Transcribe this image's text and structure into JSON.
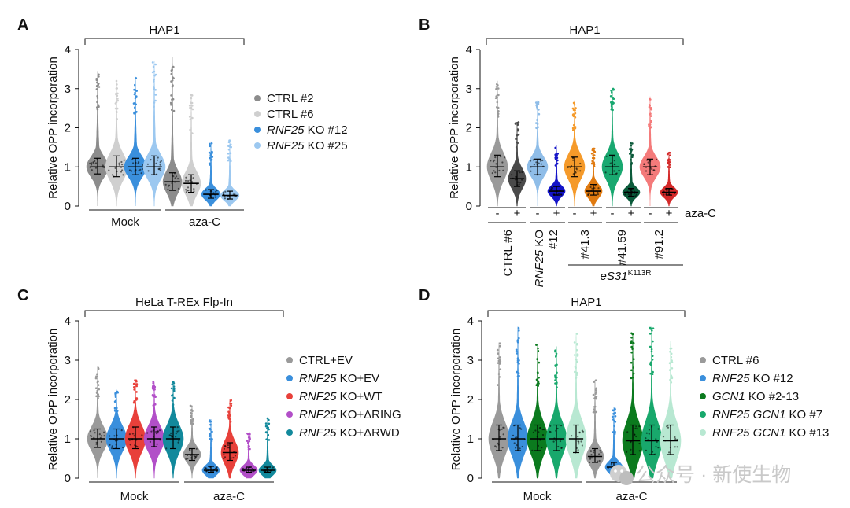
{
  "watermark": "公众号 · 新使生物",
  "watermark_icon": "wechat-icon",
  "chart_data": [
    {
      "panel": "A",
      "type": "violin",
      "title": "HAP1",
      "ylabel": "Relative OPP incorporation",
      "ylim": [
        0,
        4
      ],
      "yticks": [
        "0",
        "1",
        "2",
        "3",
        "4"
      ],
      "groups": [
        "Mock",
        "aza-C"
      ],
      "legend": [
        {
          "label_it": "",
          "label": "CTRL #2",
          "color": "#8c8c8c"
        },
        {
          "label_it": "",
          "label": "CTRL #6",
          "color": "#cfcfcf"
        },
        {
          "label_it": "RNF25",
          "label": " KO #12",
          "color": "#3a8fdc"
        },
        {
          "label_it": "RNF25",
          "label": " KO #25",
          "color": "#9cc8f0"
        }
      ],
      "series": [
        {
          "group": "Mock",
          "name": "CTRL #2",
          "color": "#8c8c8c",
          "median": 1.0,
          "q1": 0.82,
          "q3": 1.22,
          "max": 3.45,
          "extra_max": 3.45
        },
        {
          "group": "Mock",
          "name": "CTRL #6",
          "color": "#cfcfcf",
          "median": 1.0,
          "q1": 0.75,
          "q3": 1.28,
          "max": 3.2,
          "extra_max": 3.2
        },
        {
          "group": "Mock",
          "name": "RNF25 KO #12",
          "color": "#3a8fdc",
          "median": 1.0,
          "q1": 0.8,
          "q3": 1.22,
          "max": 3.3,
          "extra_max": 3.3
        },
        {
          "group": "Mock",
          "name": "RNF25 KO #25",
          "color": "#9cc8f0",
          "median": 1.0,
          "q1": 0.8,
          "q3": 1.28,
          "max": 3.7,
          "extra_max": 3.7
        },
        {
          "group": "aza-C",
          "name": "CTRL #2",
          "color": "#8c8c8c",
          "median": 0.62,
          "q1": 0.4,
          "q3": 0.85,
          "max": 3.8,
          "extra_max": 3.8
        },
        {
          "group": "aza-C",
          "name": "CTRL #6",
          "color": "#cfcfcf",
          "median": 0.58,
          "q1": 0.35,
          "q3": 0.8,
          "max": 2.85,
          "extra_max": 2.85
        },
        {
          "group": "aza-C",
          "name": "RNF25 KO #12",
          "color": "#3a8fdc",
          "median": 0.3,
          "q1": 0.2,
          "q3": 0.42,
          "max": 1.65,
          "extra_max": 1.65
        },
        {
          "group": "aza-C",
          "name": "RNF25 KO #25",
          "color": "#9cc8f0",
          "median": 0.27,
          "q1": 0.18,
          "q3": 0.38,
          "max": 1.7,
          "extra_max": 1.7
        }
      ]
    },
    {
      "panel": "B",
      "type": "violin",
      "title": "HAP1",
      "ylabel": "Relative OPP incorporation",
      "ylim": [
        0,
        4
      ],
      "yticks": [
        "0",
        "1",
        "2",
        "3",
        "4"
      ],
      "treatment_label": "aza-C",
      "cell_lines": [
        {
          "lines": [
            "CTRL #6"
          ],
          "italic_prefix": ""
        },
        {
          "lines": [
            "RNF25 KO",
            "#12"
          ],
          "italic_prefix": "RNF25"
        },
        {
          "lines": [
            "#41.3"
          ],
          "italic_prefix": ""
        },
        {
          "lines": [
            "#41.59"
          ],
          "italic_prefix": ""
        },
        {
          "lines": [
            "#91.2"
          ],
          "italic_prefix": ""
        }
      ],
      "mutant_label": "eS31",
      "mutant_superscript": "K113R",
      "series": [
        {
          "treatment": "-",
          "color": "#9a9a9a",
          "median": 1.0,
          "q1": 0.75,
          "q3": 1.3,
          "max": 3.2
        },
        {
          "treatment": "+",
          "color": "#4a4a4a",
          "median": 0.7,
          "q1": 0.5,
          "q3": 0.9,
          "max": 2.15
        },
        {
          "treatment": "-",
          "color": "#8fbde8",
          "median": 1.0,
          "q1": 0.8,
          "q3": 1.2,
          "max": 2.7
        },
        {
          "treatment": "+",
          "color": "#1414c8",
          "median": 0.38,
          "q1": 0.28,
          "q3": 0.5,
          "max": 1.55
        },
        {
          "treatment": "-",
          "color": "#f59a2a",
          "median": 1.0,
          "q1": 0.75,
          "q3": 1.25,
          "max": 2.7
        },
        {
          "treatment": "+",
          "color": "#e07a10",
          "median": 0.38,
          "q1": 0.28,
          "q3": 0.55,
          "max": 1.5
        },
        {
          "treatment": "-",
          "color": "#19a870",
          "median": 1.0,
          "q1": 0.8,
          "q3": 1.3,
          "max": 3.0
        },
        {
          "treatment": "+",
          "color": "#0b5a3a",
          "median": 0.35,
          "q1": 0.25,
          "q3": 0.45,
          "max": 1.65
        },
        {
          "treatment": "-",
          "color": "#f47a7a",
          "median": 1.0,
          "q1": 0.8,
          "q3": 1.2,
          "max": 2.8
        },
        {
          "treatment": "+",
          "color": "#d42a2a",
          "median": 0.35,
          "q1": 0.28,
          "q3": 0.45,
          "max": 1.38
        }
      ]
    },
    {
      "panel": "C",
      "type": "violin",
      "title": "HeLa T-REx Flp-In",
      "ylabel": "Relative OPP incorporation",
      "ylim": [
        0,
        4
      ],
      "yticks": [
        "0",
        "1",
        "2",
        "3",
        "4"
      ],
      "groups": [
        "Mock",
        "aza-C"
      ],
      "legend": [
        {
          "label_it": "",
          "label": "CTRL+EV",
          "color": "#9a9a9a"
        },
        {
          "label_it": "RNF25",
          "label": " KO+EV",
          "color": "#3a8fdc"
        },
        {
          "label_it": "RNF25",
          "label": " KO+WT",
          "color": "#e8403a"
        },
        {
          "label_it": "RNF25",
          "label": " KO+ΔRING",
          "color": "#b24fc8"
        },
        {
          "label_it": "RNF25",
          "label": " KO+ΔRWD",
          "color": "#12899c"
        }
      ],
      "series": [
        {
          "group": "Mock",
          "name": "CTRL+EV",
          "color": "#9a9a9a",
          "median": 1.0,
          "q1": 0.78,
          "q3": 1.25,
          "max": 2.85
        },
        {
          "group": "Mock",
          "name": "RNF25 KO+EV",
          "color": "#3a8fdc",
          "median": 1.0,
          "q1": 0.75,
          "q3": 1.25,
          "max": 2.25
        },
        {
          "group": "Mock",
          "name": "RNF25 KO+WT",
          "color": "#e8403a",
          "median": 1.0,
          "q1": 0.75,
          "q3": 1.3,
          "max": 2.5
        },
        {
          "group": "Mock",
          "name": "RNF25 KO+ΔRING",
          "color": "#b24fc8",
          "median": 1.0,
          "q1": 0.8,
          "q3": 1.3,
          "max": 2.45
        },
        {
          "group": "Mock",
          "name": "RNF25 KO+ΔRWD",
          "color": "#12899c",
          "median": 1.0,
          "q1": 0.75,
          "q3": 1.3,
          "max": 2.45
        },
        {
          "group": "aza-C",
          "name": "CTRL+EV",
          "color": "#9a9a9a",
          "median": 0.6,
          "q1": 0.45,
          "q3": 0.75,
          "max": 1.85
        },
        {
          "group": "aza-C",
          "name": "RNF25 KO+EV",
          "color": "#3a8fdc",
          "median": 0.2,
          "q1": 0.15,
          "q3": 0.3,
          "max": 1.5
        },
        {
          "group": "aza-C",
          "name": "RNF25 KO+WT",
          "color": "#e8403a",
          "median": 0.65,
          "q1": 0.45,
          "q3": 0.9,
          "max": 2.0
        },
        {
          "group": "aza-C",
          "name": "RNF25 KO+ΔRING",
          "color": "#b24fc8",
          "median": 0.2,
          "q1": 0.15,
          "q3": 0.28,
          "max": 1.15
        },
        {
          "group": "aza-C",
          "name": "RNF25 KO+ΔRWD",
          "color": "#12899c",
          "median": 0.2,
          "q1": 0.15,
          "q3": 0.28,
          "max": 1.55
        }
      ]
    },
    {
      "panel": "D",
      "type": "violin",
      "title": "HAP1",
      "ylabel": "Relative OPP incorporation",
      "ylim": [
        0,
        4
      ],
      "yticks": [
        "0",
        "1",
        "2",
        "3",
        "4"
      ],
      "groups": [
        "Mock",
        "aza-C"
      ],
      "legend": [
        {
          "label_it": "",
          "label": "CTRL #6",
          "color": "#9a9a9a"
        },
        {
          "label_it": "RNF25",
          "label": " KO #12",
          "color": "#3a8fdc"
        },
        {
          "label_it": "GCN1",
          "label": " KO #2-13",
          "color": "#0b7a1e"
        },
        {
          "label_it": "RNF25 GCN1",
          "label": " KO #7",
          "color": "#18a86c"
        },
        {
          "label_it": "RNF25 GCN1",
          "label": " KO #13",
          "color": "#b8e8d2"
        }
      ],
      "series": [
        {
          "group": "Mock",
          "name": "CTRL #6",
          "color": "#9a9a9a",
          "median": 1.0,
          "q1": 0.7,
          "q3": 1.35,
          "max": 3.45
        },
        {
          "group": "Mock",
          "name": "RNF25 KO #12",
          "color": "#3a8fdc",
          "median": 1.0,
          "q1": 0.7,
          "q3": 1.35,
          "max": 3.85
        },
        {
          "group": "Mock",
          "name": "GCN1 KO #2-13",
          "color": "#0b7a1e",
          "median": 1.0,
          "q1": 0.7,
          "q3": 1.35,
          "max": 3.4
        },
        {
          "group": "Mock",
          "name": "RNF25 GCN1 KO #7",
          "color": "#18a86c",
          "median": 1.0,
          "q1": 0.7,
          "q3": 1.35,
          "max": 3.35
        },
        {
          "group": "Mock",
          "name": "RNF25 GCN1 KO #13",
          "color": "#b8e8d2",
          "median": 1.0,
          "q1": 0.65,
          "q3": 1.35,
          "max": 3.7
        },
        {
          "group": "aza-C",
          "name": "CTRL #6",
          "color": "#9a9a9a",
          "median": 0.55,
          "q1": 0.4,
          "q3": 0.75,
          "max": 2.5
        },
        {
          "group": "aza-C",
          "name": "RNF25 KO #12",
          "color": "#3a8fdc",
          "median": 0.28,
          "q1": 0.18,
          "q3": 0.4,
          "max": 1.8
        },
        {
          "group": "aza-C",
          "name": "GCN1 KO #2-13",
          "color": "#0b7a1e",
          "median": 0.95,
          "q1": 0.6,
          "q3": 1.35,
          "max": 3.7
        },
        {
          "group": "aza-C",
          "name": "RNF25 GCN1 KO #7",
          "color": "#18a86c",
          "median": 0.95,
          "q1": 0.6,
          "q3": 1.35,
          "max": 3.85
        },
        {
          "group": "aza-C",
          "name": "RNF25 GCN1 KO #13",
          "color": "#b8e8d2",
          "median": 0.95,
          "q1": 0.6,
          "q3": 1.35,
          "max": 3.5
        }
      ]
    }
  ]
}
